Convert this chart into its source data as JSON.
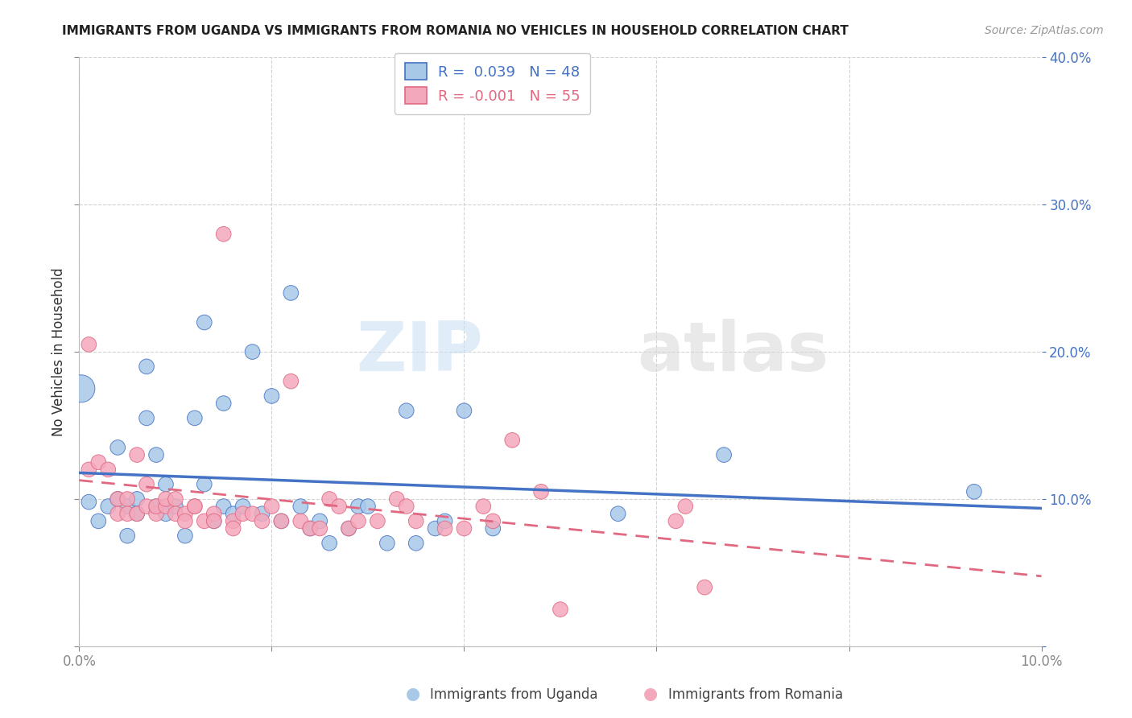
{
  "title": "IMMIGRANTS FROM UGANDA VS IMMIGRANTS FROM ROMANIA NO VEHICLES IN HOUSEHOLD CORRELATION CHART",
  "source": "Source: ZipAtlas.com",
  "ylabel": "No Vehicles in Household",
  "xlim": [
    0.0,
    0.1
  ],
  "ylim": [
    0.0,
    0.4
  ],
  "legend_label1_R": "0.039",
  "legend_label1_N": "48",
  "legend_label2_R": "-0.001",
  "legend_label2_N": "55",
  "bottom_legend1": "Immigrants from Uganda",
  "bottom_legend2": "Immigrants from Romania",
  "color_uganda": "#a8c8e8",
  "color_romania": "#f4a8bc",
  "trend_color_uganda": "#4472c4",
  "trend_color_romania": "#e06880",
  "watermark_zip": "ZIP",
  "watermark_atlas": "atlas",
  "uganda_x": [
    0.0002,
    0.001,
    0.002,
    0.003,
    0.004,
    0.004,
    0.005,
    0.005,
    0.006,
    0.006,
    0.007,
    0.007,
    0.008,
    0.008,
    0.009,
    0.009,
    0.01,
    0.011,
    0.012,
    0.013,
    0.013,
    0.014,
    0.015,
    0.015,
    0.016,
    0.017,
    0.018,
    0.019,
    0.02,
    0.021,
    0.022,
    0.023,
    0.024,
    0.025,
    0.026,
    0.028,
    0.029,
    0.03,
    0.032,
    0.034,
    0.035,
    0.037,
    0.038,
    0.04,
    0.043,
    0.056,
    0.067,
    0.093
  ],
  "uganda_y": [
    0.175,
    0.098,
    0.085,
    0.095,
    0.1,
    0.135,
    0.095,
    0.075,
    0.1,
    0.09,
    0.19,
    0.155,
    0.13,
    0.095,
    0.11,
    0.09,
    0.095,
    0.075,
    0.155,
    0.11,
    0.22,
    0.085,
    0.095,
    0.165,
    0.09,
    0.095,
    0.2,
    0.09,
    0.17,
    0.085,
    0.24,
    0.095,
    0.08,
    0.085,
    0.07,
    0.08,
    0.095,
    0.095,
    0.07,
    0.16,
    0.07,
    0.08,
    0.085,
    0.16,
    0.08,
    0.09,
    0.13,
    0.105
  ],
  "uganda_size_large": [
    0
  ],
  "romania_x": [
    0.001,
    0.001,
    0.002,
    0.003,
    0.004,
    0.004,
    0.005,
    0.005,
    0.006,
    0.006,
    0.007,
    0.007,
    0.008,
    0.008,
    0.009,
    0.009,
    0.01,
    0.01,
    0.011,
    0.011,
    0.012,
    0.012,
    0.013,
    0.014,
    0.014,
    0.015,
    0.016,
    0.016,
    0.017,
    0.018,
    0.019,
    0.02,
    0.021,
    0.022,
    0.023,
    0.024,
    0.025,
    0.026,
    0.027,
    0.028,
    0.029,
    0.031,
    0.033,
    0.034,
    0.035,
    0.038,
    0.04,
    0.042,
    0.043,
    0.045,
    0.048,
    0.05,
    0.062,
    0.063,
    0.065
  ],
  "romania_y": [
    0.205,
    0.12,
    0.125,
    0.12,
    0.1,
    0.09,
    0.1,
    0.09,
    0.13,
    0.09,
    0.11,
    0.095,
    0.09,
    0.095,
    0.095,
    0.1,
    0.1,
    0.09,
    0.09,
    0.085,
    0.095,
    0.095,
    0.085,
    0.09,
    0.085,
    0.28,
    0.085,
    0.08,
    0.09,
    0.09,
    0.085,
    0.095,
    0.085,
    0.18,
    0.085,
    0.08,
    0.08,
    0.1,
    0.095,
    0.08,
    0.085,
    0.085,
    0.1,
    0.095,
    0.085,
    0.08,
    0.08,
    0.095,
    0.085,
    0.14,
    0.105,
    0.025,
    0.085,
    0.095,
    0.04
  ]
}
